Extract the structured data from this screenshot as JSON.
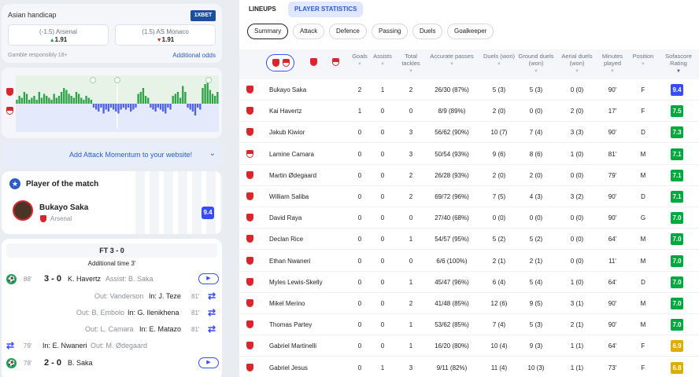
{
  "odds": {
    "title": "Asian handicap",
    "brand": "1XBET",
    "home": {
      "line": "(-1.5) Arsenal",
      "value": "1.91",
      "trend": "up"
    },
    "away": {
      "line": "(1.5) AS Monaco",
      "value": "1.91",
      "trend": "down"
    },
    "disclaimer": "Gamble responsibly 18+",
    "link": "Additional odds"
  },
  "momentum": {
    "bars": [
      2,
      4,
      3,
      6,
      5,
      2,
      3,
      4,
      2,
      6,
      3,
      5,
      4,
      3,
      2,
      5,
      3,
      4,
      6,
      8,
      7,
      5,
      4,
      3,
      6,
      5,
      3,
      2,
      4,
      3,
      2,
      -2,
      -3,
      -4,
      -2,
      -5,
      -3,
      -4,
      -2,
      -3,
      -4,
      -5,
      -3,
      -2,
      -3,
      -2,
      -4,
      -3,
      -2,
      5,
      6,
      8,
      4,
      3,
      -2,
      -3,
      -4,
      -2,
      -3,
      -4,
      -5,
      -2,
      -3,
      4,
      5,
      6,
      3,
      9,
      6,
      -2,
      -3,
      -4,
      -6,
      -2,
      -3,
      8,
      10,
      12,
      7,
      5,
      4,
      6
    ]
  },
  "widget_link": {
    "label": "Add Attack Momentum to your website!"
  },
  "potm": {
    "title": "Player of the match",
    "name": "Bukayo Saka",
    "team": "Arsenal",
    "rating": "9.4"
  },
  "events": {
    "final": "FT 3 - 0",
    "added_time": "Additional time 3'",
    "items": [
      {
        "kind": "goal",
        "minute": "88'",
        "score": "3 - 0",
        "scorer": "K. Havertz",
        "assist": "Assist: B. Saka",
        "video": "▶"
      },
      {
        "kind": "sub",
        "side": "right",
        "out": "Out: Vanderson",
        "in": "In: J. Teze",
        "minute": "81'"
      },
      {
        "kind": "sub",
        "side": "right",
        "out": "Out: B. Embolo",
        "in": "In: G. Ilenikhena",
        "minute": "81'"
      },
      {
        "kind": "sub",
        "side": "right",
        "out": "Out: L. Camara",
        "in": "In: E. Matazo",
        "minute": "81'"
      },
      {
        "kind": "sub",
        "side": "left",
        "minute": "79'",
        "in": "In: E. Nwaneri",
        "out": "Out: M. Ødegaard"
      },
      {
        "kind": "goal",
        "minute": "78'",
        "score": "2 - 0",
        "scorer": "B. Saka",
        "assist": "",
        "video": "▶"
      }
    ]
  },
  "tabs": {
    "lineups": "LINEUPS",
    "player_statistics": "PLAYER STATISTICS"
  },
  "filters": [
    "Summary",
    "Attack",
    "Defence",
    "Passing",
    "Duels",
    "Goalkeeper"
  ],
  "columns": [
    "Goals",
    "Assists",
    "Total tackles",
    "Accurate passes",
    "Duels (won)",
    "Ground duels (won)",
    "Aerial duels (won)",
    "Minutes played",
    "Position",
    "Sofascore Rating"
  ],
  "players": [
    {
      "team": "ars",
      "name": "Bukayo Saka",
      "goals": "2",
      "assists": "1",
      "tackles": "2",
      "passes": "26/30 (87%)",
      "duels": "5 (3)",
      "ground": "5 (3)",
      "aerial": "0 (0)",
      "minutes": "90'",
      "pos": "F",
      "rating": "9.4",
      "rating_color": "#374df5"
    },
    {
      "team": "ars",
      "name": "Kai Havertz",
      "goals": "1",
      "assists": "0",
      "tackles": "0",
      "passes": "8/9 (89%)",
      "duels": "2 (0)",
      "ground": "0 (0)",
      "aerial": "2 (0)",
      "minutes": "17'",
      "pos": "F",
      "rating": "7.5",
      "rating_color": "#00a83f"
    },
    {
      "team": "ars",
      "name": "Jakub Kiwior",
      "goals": "0",
      "assists": "0",
      "tackles": "3",
      "passes": "56/62 (90%)",
      "duels": "10 (7)",
      "ground": "7 (4)",
      "aerial": "3 (3)",
      "minutes": "90'",
      "pos": "D",
      "rating": "7.3",
      "rating_color": "#00a83f"
    },
    {
      "team": "mon",
      "name": "Lamine Camara",
      "goals": "0",
      "assists": "0",
      "tackles": "3",
      "passes": "50/54 (93%)",
      "duels": "9 (6)",
      "ground": "8 (6)",
      "aerial": "1 (0)",
      "minutes": "81'",
      "pos": "M",
      "rating": "7.1",
      "rating_color": "#00a83f"
    },
    {
      "team": "ars",
      "name": "Martin Ødegaard",
      "goals": "0",
      "assists": "0",
      "tackles": "2",
      "passes": "26/28 (93%)",
      "duels": "2 (0)",
      "ground": "2 (0)",
      "aerial": "0 (0)",
      "minutes": "79'",
      "pos": "M",
      "rating": "7.1",
      "rating_color": "#00a83f"
    },
    {
      "team": "ars",
      "name": "William Saliba",
      "goals": "0",
      "assists": "0",
      "tackles": "2",
      "passes": "69/72 (96%)",
      "duels": "7 (5)",
      "ground": "4 (3)",
      "aerial": "3 (2)",
      "minutes": "90'",
      "pos": "D",
      "rating": "7.1",
      "rating_color": "#00a83f"
    },
    {
      "team": "ars",
      "name": "David Raya",
      "goals": "0",
      "assists": "0",
      "tackles": "0",
      "passes": "27/40 (68%)",
      "duels": "0 (0)",
      "ground": "0 (0)",
      "aerial": "0 (0)",
      "minutes": "90'",
      "pos": "G",
      "rating": "7.0",
      "rating_color": "#00a83f"
    },
    {
      "team": "ars",
      "name": "Declan Rice",
      "goals": "0",
      "assists": "0",
      "tackles": "1",
      "passes": "54/57 (95%)",
      "duels": "5 (2)",
      "ground": "5 (2)",
      "aerial": "0 (0)",
      "minutes": "64'",
      "pos": "M",
      "rating": "7.0",
      "rating_color": "#00a83f"
    },
    {
      "team": "ars",
      "name": "Ethan Nwaneri",
      "goals": "0",
      "assists": "0",
      "tackles": "0",
      "passes": "6/6 (100%)",
      "duels": "2 (1)",
      "ground": "2 (1)",
      "aerial": "0 (0)",
      "minutes": "11'",
      "pos": "M",
      "rating": "7.0",
      "rating_color": "#00a83f"
    },
    {
      "team": "ars",
      "name": "Myles Lewis-Skelly",
      "goals": "0",
      "assists": "0",
      "tackles": "1",
      "passes": "45/47 (96%)",
      "duels": "6 (4)",
      "ground": "5 (4)",
      "aerial": "1 (0)",
      "minutes": "64'",
      "pos": "D",
      "rating": "7.0",
      "rating_color": "#00a83f"
    },
    {
      "team": "ars",
      "name": "Mikel Merino",
      "goals": "0",
      "assists": "0",
      "tackles": "2",
      "passes": "41/48 (85%)",
      "duels": "12 (6)",
      "ground": "9 (5)",
      "aerial": "3 (1)",
      "minutes": "90'",
      "pos": "M",
      "rating": "7.0",
      "rating_color": "#00a83f"
    },
    {
      "team": "ars",
      "name": "Thomas Partey",
      "goals": "0",
      "assists": "0",
      "tackles": "1",
      "passes": "53/62 (85%)",
      "duels": "7 (4)",
      "ground": "5 (3)",
      "aerial": "2 (1)",
      "minutes": "90'",
      "pos": "M",
      "rating": "7.0",
      "rating_color": "#00a83f"
    },
    {
      "team": "ars",
      "name": "Gabriel Martinelli",
      "goals": "0",
      "assists": "0",
      "tackles": "1",
      "passes": "16/20 (80%)",
      "duels": "10 (4)",
      "ground": "9 (3)",
      "aerial": "1 (1)",
      "minutes": "64'",
      "pos": "F",
      "rating": "6.9",
      "rating_color": "#d9af00"
    },
    {
      "team": "ars",
      "name": "Gabriel Jesus",
      "goals": "0",
      "assists": "1",
      "tackles": "3",
      "passes": "9/11 (82%)",
      "duels": "11 (4)",
      "ground": "10 (3)",
      "aerial": "1 (1)",
      "minutes": "73'",
      "pos": "F",
      "rating": "6.8",
      "rating_color": "#d9af00"
    }
  ]
}
